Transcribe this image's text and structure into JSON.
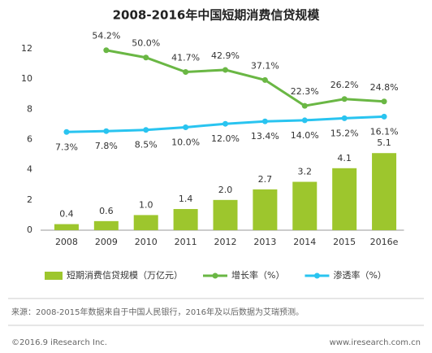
{
  "chart_data": {
    "type": "bar",
    "title": "2008-2016年中国短期消费信贷规模",
    "categories": [
      "2008",
      "2009",
      "2010",
      "2011",
      "2012",
      "2013",
      "2014",
      "2015",
      "2016e"
    ],
    "ylim": [
      0,
      12
    ],
    "yticks": [
      0,
      2,
      4,
      6,
      8,
      10,
      12
    ],
    "y2lim": [
      -49,
      55
    ],
    "legend": "bottom",
    "series": [
      {
        "name": "短期消费信贷规模（万亿元）",
        "type": "bar",
        "color": "#9dc62d",
        "values": [
          0.4,
          0.6,
          1.0,
          1.4,
          2.0,
          2.7,
          3.2,
          4.1,
          5.1
        ],
        "value_labels": [
          "0.4",
          "0.6",
          "1.0",
          "1.4",
          "2.0",
          "2.7",
          "3.2",
          "4.1",
          "5.1"
        ]
      },
      {
        "name": "增长率（%）",
        "type": "line",
        "axis": "y2",
        "color": "#6ab744",
        "values": [
          null,
          54.2,
          50.0,
          41.7,
          42.9,
          37.1,
          22.3,
          26.2,
          24.8
        ],
        "value_labels": [
          null,
          "54.2%",
          "50.0%",
          "41.7%",
          "42.9%",
          "37.1%",
          "22.3%",
          "26.2%",
          "24.8%"
        ]
      },
      {
        "name": "渗透率（%）",
        "type": "line",
        "axis": "y2",
        "color": "#29c4f0",
        "values": [
          7.3,
          7.8,
          8.5,
          10.0,
          12.0,
          13.4,
          14.0,
          15.2,
          16.1
        ],
        "value_labels": [
          "7.3%",
          "7.8%",
          "8.5%",
          "10.0%",
          "12.0%",
          "13.4%",
          "14.0%",
          "15.2%",
          "16.1%"
        ]
      }
    ],
    "source": "来源：2008-2015年数据来自于中国人民银行，2016年及以后数据为艾瑞预测。",
    "copyright": "©2016.9 iResearch Inc.",
    "website": "www.iresearch.com.cn"
  }
}
